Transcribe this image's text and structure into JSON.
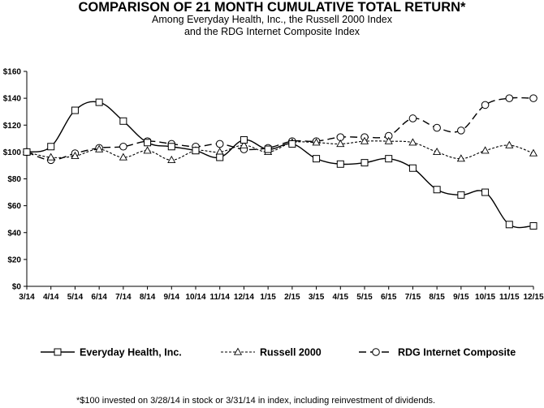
{
  "chart_data": {
    "type": "line",
    "title": "COMPARISON OF 21 MONTH CUMULATIVE TOTAL RETURN*",
    "subtitle_lines": [
      "Among Everyday Health, Inc., the Russell 2000 Index",
      "and the RDG Internet Composite Index"
    ],
    "footnote": "*$100 invested on 3/28/14 in stock or 3/31/14 in index, including reinvestment of dividends.",
    "x": [
      "3/14",
      "4/14",
      "5/14",
      "6/14",
      "7/14",
      "8/14",
      "9/14",
      "10/14",
      "11/14",
      "12/14",
      "1/15",
      "2/15",
      "3/15",
      "4/15",
      "5/15",
      "6/15",
      "7/15",
      "8/15",
      "9/15",
      "10/15",
      "11/15",
      "12/15"
    ],
    "ylim": [
      0,
      160
    ],
    "yticks": [
      0,
      20,
      40,
      60,
      80,
      100,
      120,
      140,
      160
    ],
    "ytick_labels": [
      "$0",
      "$20",
      "$40",
      "$60",
      "$80",
      "$100",
      "$120",
      "$140",
      "$160"
    ],
    "grid": false,
    "legend_position": "bottom",
    "series": [
      {
        "name": "Everyday Health, Inc.",
        "marker": "square",
        "line_style": "solid",
        "color": "#000000",
        "values": [
          100,
          104,
          131,
          137,
          123,
          107,
          104,
          101,
          96,
          109,
          102,
          106,
          95,
          91,
          92,
          95,
          88,
          72,
          68,
          70,
          46,
          45
        ]
      },
      {
        "name": "Russell 2000",
        "marker": "triangle",
        "line_style": "dotted",
        "color": "#000000",
        "values": [
          100,
          96,
          97,
          102,
          96,
          101,
          94,
          101,
          100,
          105,
          100,
          107,
          107,
          106,
          108,
          108,
          107,
          100,
          95,
          101,
          105,
          99
        ]
      },
      {
        "name": "RDG Internet Composite",
        "marker": "circle",
        "line_style": "dashed",
        "color": "#000000",
        "values": [
          100,
          94,
          99,
          103,
          104,
          108,
          106,
          104,
          106,
          102,
          103,
          108,
          108,
          111,
          111,
          112,
          125,
          118,
          116,
          135,
          140,
          140
        ]
      }
    ]
  }
}
